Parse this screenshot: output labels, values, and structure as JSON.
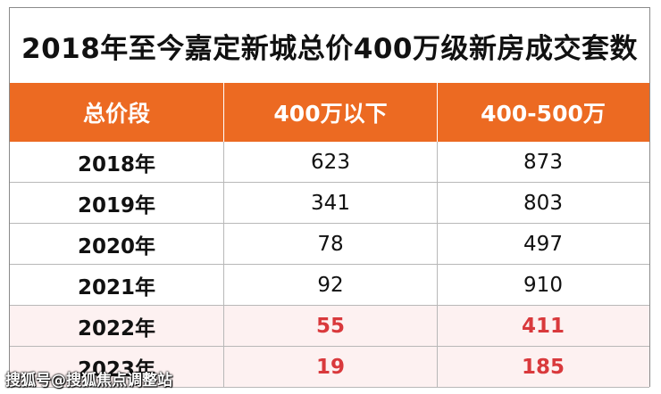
{
  "chart_data": {
    "type": "table",
    "title": "2018年至今嘉定新城总价400万级新房成交套数",
    "columns": [
      "总价段",
      "400万以下",
      "400-500万"
    ],
    "rows": [
      {
        "label": "2018年",
        "values": [
          623,
          873
        ],
        "highlight": false
      },
      {
        "label": "2019年",
        "values": [
          341,
          803
        ],
        "highlight": false
      },
      {
        "label": "2020年",
        "values": [
          78,
          497
        ],
        "highlight": false
      },
      {
        "label": "2021年",
        "values": [
          92,
          910
        ],
        "highlight": false
      },
      {
        "label": "2022年",
        "values": [
          55,
          411
        ],
        "highlight": true
      },
      {
        "label": "2023年",
        "values": [
          19,
          185
        ],
        "highlight": true
      }
    ],
    "colors": {
      "header": "#ec6a22",
      "highlight_text": "#d9393c",
      "highlight_row": "#fdf1f1"
    }
  },
  "watermark": "搜狐号@搜狐焦点调整站"
}
